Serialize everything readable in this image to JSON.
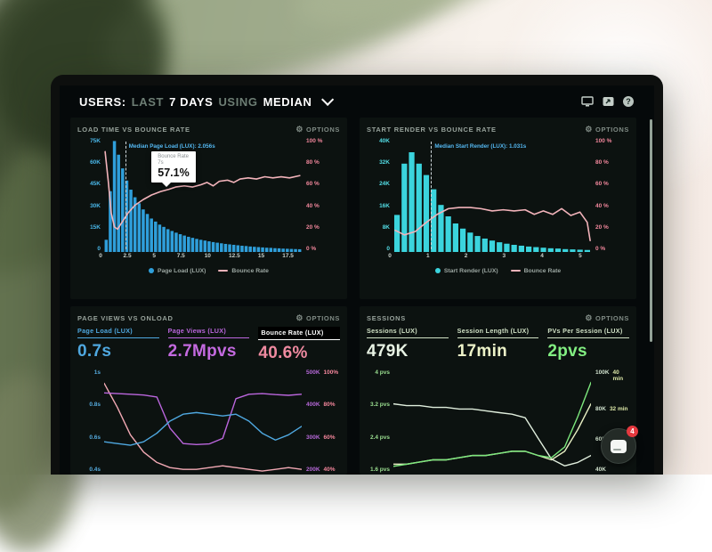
{
  "header": {
    "s0": "USERS:",
    "s1": "LAST",
    "s2": "7 DAYS",
    "s3": "USING",
    "s4": "MEDIAN"
  },
  "icons": {
    "gear": "⚙",
    "help": "?"
  },
  "panels": {
    "load_time": {
      "title": "LOAD TIME VS BOUNCE RATE",
      "options": "OPTIONS"
    },
    "start_render": {
      "title": "START RENDER VS BOUNCE RATE",
      "options": "OPTIONS"
    },
    "page_views": {
      "title": "PAGE VIEWS VS ONLOAD",
      "options": "OPTIONS",
      "metrics": [
        {
          "label": "Page Load (LUX)",
          "value": "0.7s",
          "color": "#4fa8e0",
          "value_color": "#4fa8e0"
        },
        {
          "label": "Page Views (LUX)",
          "value": "2.7Mpvs",
          "color": "#bb66dd",
          "value_color": "#c46ae0"
        },
        {
          "label": "Bounce Rate (LUX)",
          "value": "40.6%",
          "highlight": true,
          "color": "#ffffff",
          "value_color": "#ef8aa0"
        }
      ]
    },
    "sessions": {
      "title": "SESSIONS",
      "options": "OPTIONS",
      "metrics": [
        {
          "label": "Sessions (LUX)",
          "value": "479K",
          "color": "#cfe0c4",
          "value_color": "#e8f3e4"
        },
        {
          "label": "Session Length (LUX)",
          "value": "17min",
          "color": "#cfe0c4",
          "value_color": "#edf3c8"
        },
        {
          "label": "PVs Per Session (LUX)",
          "value": "2pvs",
          "color": "#cfe0c4",
          "value_color": "#82ef82"
        }
      ]
    }
  },
  "chart_data": [
    {
      "id": "load_time_vs_bounce_rate",
      "type": "histogram+line",
      "title": "LOAD TIME VS BOUNCE RATE",
      "xmin": 0,
      "xmax": 19.2,
      "bar_series": {
        "name": "Page Load (LUX)",
        "color": "#2f9fdb",
        "ymax": 75000,
        "values_k": [
          8,
          40,
          73,
          64,
          55,
          47,
          41,
          36,
          32,
          28,
          25,
          22,
          20,
          18,
          16.5,
          15,
          13.8,
          12.7,
          11.7,
          10.8,
          10,
          9.3,
          8.6,
          8,
          7.5,
          7,
          6.5,
          6.1,
          5.7,
          5.3,
          5,
          4.7,
          4.4,
          4.1,
          3.9,
          3.6,
          3.4,
          3.2,
          3,
          2.8,
          2.7,
          2.5,
          2.4,
          2.2,
          2.1,
          2,
          1.9,
          1.8
        ]
      },
      "line_series": {
        "name": "Bounce Rate",
        "color": "#f2b3ba",
        "ymin": 0,
        "ymax": 100,
        "points": [
          [
            0.1,
            88
          ],
          [
            0.4,
            62
          ],
          [
            0.7,
            34
          ],
          [
            1.0,
            22
          ],
          [
            1.3,
            20
          ],
          [
            1.8,
            27
          ],
          [
            2.3,
            34
          ],
          [
            3.0,
            41
          ],
          [
            3.8,
            46
          ],
          [
            4.6,
            50
          ],
          [
            5.5,
            53
          ],
          [
            6.3,
            55
          ],
          [
            7.0,
            57.1
          ],
          [
            7.8,
            58
          ],
          [
            8.6,
            57
          ],
          [
            9.4,
            59
          ],
          [
            10.0,
            61
          ],
          [
            10.6,
            58
          ],
          [
            11.2,
            62
          ],
          [
            12.0,
            63
          ],
          [
            12.6,
            61
          ],
          [
            13.2,
            64
          ],
          [
            14.0,
            65
          ],
          [
            14.8,
            64
          ],
          [
            15.6,
            66
          ],
          [
            16.4,
            65
          ],
          [
            17.2,
            66
          ],
          [
            18.0,
            65
          ],
          [
            19.0,
            67
          ]
        ]
      },
      "median": {
        "x": 2.056,
        "label": "Median Page Load (LUX): 2.056s"
      },
      "tooltip": {
        "title": "Bounce Rate",
        "x_value": "7s",
        "value": "57.1%"
      },
      "y_left_ticks": [
        "75K",
        "60K",
        "45K",
        "30K",
        "15K",
        "0"
      ],
      "y_left_color": "#49b6e8",
      "y_right_ticks": [
        "100 %",
        "80 %",
        "60 %",
        "40 %",
        "20 %",
        "0 %"
      ],
      "y_right_color": "#f2879c",
      "x_ticks": [
        "0",
        "2.5",
        "5",
        "7.5",
        "10",
        "12.5",
        "15",
        "17.5"
      ],
      "legend": [
        {
          "type": "dot",
          "color": "#2f9fdb",
          "label": "Page Load (LUX)"
        },
        {
          "type": "dash",
          "color": "#f2b3ba",
          "label": "Bounce Rate"
        }
      ]
    },
    {
      "id": "start_render_vs_bounce_rate",
      "type": "histogram+line",
      "title": "START RENDER VS BOUNCE RATE",
      "xmin": 0,
      "xmax": 5.4,
      "bar_series": {
        "name": "Start Render (LUX)",
        "color": "#3bd4dd",
        "ymax": 40000,
        "values_k": [
          13,
          31,
          35,
          31,
          27,
          22,
          16.5,
          12.5,
          10,
          8.2,
          6.8,
          5.6,
          4.7,
          4,
          3.4,
          2.9,
          2.5,
          2.2,
          1.9,
          1.7,
          1.5,
          1.3,
          1.2,
          1.0,
          0.9,
          0.8,
          0.7
        ]
      },
      "line_series": {
        "name": "Bounce Rate",
        "color": "#f2b3ba",
        "ymin": 0,
        "ymax": 100,
        "points": [
          [
            0.05,
            19
          ],
          [
            0.3,
            15
          ],
          [
            0.6,
            18
          ],
          [
            0.9,
            26
          ],
          [
            1.2,
            33
          ],
          [
            1.5,
            38
          ],
          [
            1.8,
            39
          ],
          [
            2.1,
            39
          ],
          [
            2.4,
            38
          ],
          [
            2.7,
            36
          ],
          [
            3.0,
            37
          ],
          [
            3.3,
            36
          ],
          [
            3.6,
            37
          ],
          [
            3.85,
            33
          ],
          [
            4.1,
            36
          ],
          [
            4.35,
            33
          ],
          [
            4.6,
            38
          ],
          [
            4.85,
            32
          ],
          [
            5.1,
            35
          ],
          [
            5.3,
            26
          ],
          [
            5.38,
            10
          ]
        ]
      },
      "median": {
        "x": 1.031,
        "label": "Median Start Render (LUX): 1.031s"
      },
      "y_left_ticks": [
        "40K",
        "32K",
        "24K",
        "16K",
        "8K",
        "0"
      ],
      "y_left_color": "#52dce4",
      "y_right_ticks": [
        "100 %",
        "80 %",
        "60 %",
        "40 %",
        "20 %",
        "0 %"
      ],
      "y_right_color": "#f2879c",
      "x_ticks": [
        "0",
        "1",
        "2",
        "3",
        "4",
        "5"
      ],
      "legend": [
        {
          "type": "dot",
          "color": "#3bd4dd",
          "label": "Start Render (LUX)"
        },
        {
          "type": "dash",
          "color": "#f2b3ba",
          "label": "Bounce Rate"
        }
      ]
    },
    {
      "id": "page_views_vs_onload",
      "type": "line",
      "title": "PAGE VIEWS VS ONLOAD",
      "series": [
        {
          "name": "Bounce Rate (LUX)",
          "color": "#f2a9b4",
          "axis_min": 40,
          "axis_max": 100,
          "unit": "%",
          "current": "40.6%",
          "values": [
            92,
            78,
            62,
            52,
            46,
            43,
            42,
            42,
            43,
            44,
            43,
            42,
            41,
            42,
            43,
            42
          ]
        },
        {
          "name": "Page Views (LUX)",
          "color": "#bb66dd",
          "axis_min": 200000,
          "axis_max": 500000,
          "unit": "pvs",
          "current": "2.7Mpvs",
          "values_k": [
            432,
            430,
            428,
            426,
            420,
            330,
            285,
            282,
            284,
            300,
            415,
            428,
            430,
            427,
            425,
            428
          ]
        },
        {
          "name": "Page Load (LUX)",
          "color": "#4fa8e0",
          "axis_min": 0.4,
          "axis_max": 1.0,
          "unit": "s",
          "current": "0.7s",
          "values": [
            0.58,
            0.57,
            0.56,
            0.58,
            0.63,
            0.7,
            0.74,
            0.75,
            0.74,
            0.73,
            0.74,
            0.7,
            0.63,
            0.59,
            0.62,
            0.67
          ]
        }
      ],
      "y_left_ticks": [
        "1s",
        "0.8s",
        "0.6s",
        "0.4s"
      ],
      "y_left_color": "#55aadd",
      "y_right_pairs": [
        [
          "500K",
          "100%"
        ],
        [
          "400K",
          "80%"
        ],
        [
          "300K",
          "60%"
        ],
        [
          "200K",
          "40%"
        ]
      ],
      "y_right_colors": [
        "#b668d8",
        "#f4869c"
      ]
    },
    {
      "id": "sessions",
      "type": "line",
      "title": "SESSIONS",
      "series": [
        {
          "name": "Sessions (LUX)",
          "color": "#e0eedd",
          "axis_min": 40000,
          "axis_max": 100000,
          "unit": "sessions",
          "current": "479K",
          "values_k": [
            80,
            79,
            79,
            78,
            78,
            77,
            77,
            76,
            75,
            74,
            72,
            60,
            48,
            44,
            46,
            50
          ]
        },
        {
          "name": "Session Length (LUX)",
          "color": "#e6eec2",
          "axis_min": 16,
          "axis_max": 40,
          "unit": "min",
          "current": "17min",
          "values": [
            18,
            18,
            18.5,
            19,
            19,
            19.5,
            20,
            20,
            20.5,
            21,
            21,
            20,
            19,
            21,
            26,
            32
          ]
        },
        {
          "name": "PVs Per Session (LUX)",
          "color": "#7de87d",
          "axis_min": 1.6,
          "axis_max": 4,
          "unit": "pvs",
          "current": "2pvs",
          "values": [
            1.75,
            1.8,
            1.85,
            1.9,
            1.9,
            1.95,
            2.0,
            2.0,
            2.05,
            2.1,
            2.1,
            2.0,
            1.95,
            2.2,
            2.9,
            3.7
          ]
        }
      ],
      "y_left_ticks": [
        "4 pvs",
        "3.2 pvs",
        "2.4 pvs",
        "1.6 pvs"
      ],
      "y_left_color": "#9ade90",
      "y_right_pairs": [
        [
          "100K",
          "40 min"
        ],
        [
          "80K",
          "32 min"
        ],
        [
          "60K",
          "24 min"
        ],
        [
          "40K",
          ""
        ]
      ],
      "y_right_colors": [
        "#cfe0cc",
        "#dde8a8"
      ]
    }
  ],
  "chat_widget": {
    "badge": "4"
  }
}
